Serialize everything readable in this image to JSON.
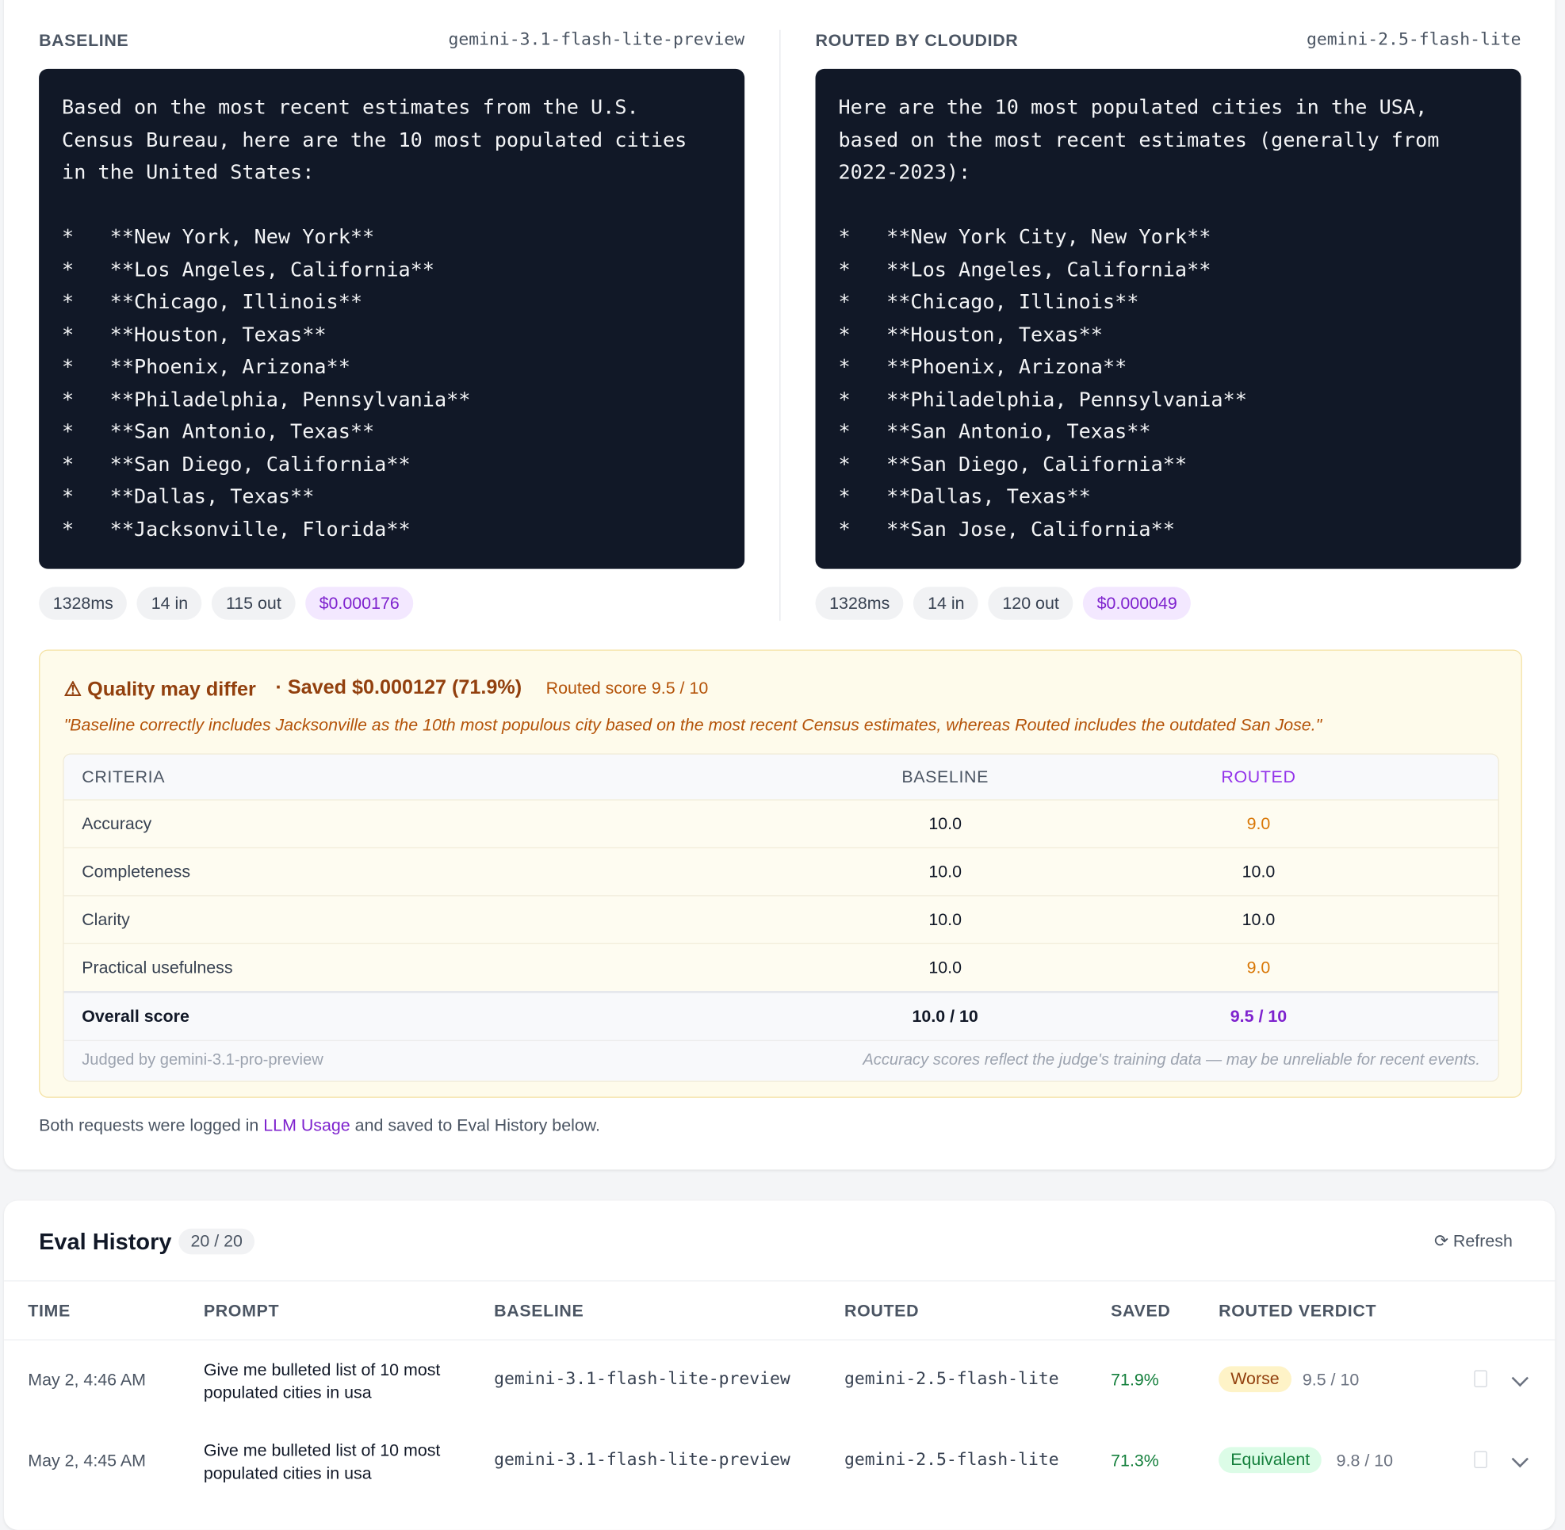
{
  "comparison": {
    "baseline": {
      "label": "BASELINE",
      "model": "gemini-3.1-flash-lite-preview",
      "intro": "Based on the most recent estimates from the U.S. Census Bureau, here are the 10 most populated cities in the United States:",
      "items": [
        "*   **New York, New York**",
        "*   **Los Angeles, California**",
        "*   **Chicago, Illinois**",
        "*   **Houston, Texas**",
        "*   **Phoenix, Arizona**",
        "*   **Philadelphia, Pennsylvania**",
        "*   **San Antonio, Texas**",
        "*   **San Diego, California**",
        "*   **Dallas, Texas**",
        "*   **Jacksonville, Florida**"
      ],
      "stats": [
        "1328ms",
        "14 in",
        "115 out"
      ],
      "cost": "$0.000176"
    },
    "routed": {
      "label": "ROUTED BY CLOUDIDR",
      "model": "gemini-2.5-flash-lite",
      "intro": "Here are the 10 most populated cities in the USA, based on the most recent estimates (generally from 2022-2023):",
      "items": [
        "*   **New York City, New York**",
        "*   **Los Angeles, California**",
        "*   **Chicago, Illinois**",
        "*   **Houston, Texas**",
        "*   **Phoenix, Arizona**",
        "*   **Philadelphia, Pennsylvania**",
        "*   **San Antonio, Texas**",
        "*   **San Diego, California**",
        "*   **Dallas, Texas**",
        "*   **San Jose, California**"
      ],
      "stats": [
        "1328ms",
        "14 in",
        "120 out"
      ],
      "cost": "$0.000049"
    }
  },
  "quality": {
    "title": "Quality may differ",
    "saved": "· Saved $0.000127 (71.9%)",
    "score": "Routed score 9.5 / 10",
    "reason": "\"Baseline correctly includes Jacksonville as the 10th most populous city based on the most recent Census estimates, whereas Routed includes the outdated San Jose.\"",
    "table": {
      "headers": [
        "CRITERIA",
        "BASELINE",
        "ROUTED"
      ],
      "rows": [
        [
          "Accuracy",
          "10.0",
          "9.0"
        ],
        [
          "Completeness",
          "10.0",
          "10.0"
        ],
        [
          "Clarity",
          "10.0",
          "10.0"
        ],
        [
          "Practical usefulness",
          "10.0",
          "9.0"
        ]
      ],
      "overall": [
        "Overall score",
        "10.0 / 10",
        "9.5 / 10"
      ],
      "judge": "Judged by gemini-3.1-pro-preview",
      "note": "Accuracy scores reflect the judge's training data — may be unreliable for recent events."
    }
  },
  "footer": {
    "before": "Both requests were logged in",
    "link": "LLM Usage",
    "after": "and saved to Eval History below."
  },
  "history": {
    "title": "Eval History",
    "count": "20 / 20",
    "refresh": "Refresh",
    "headers": [
      "TIME",
      "PROMPT",
      "BASELINE",
      "ROUTED",
      "SAVED",
      "ROUTED VERDICT"
    ],
    "rows": [
      {
        "time": "May 2, 4:46 AM",
        "prompt": "Give me bulleted list of 10 most populated cities in usa",
        "baseline": "gemini-3.1-flash-lite-preview",
        "routed": "gemini-2.5-flash-lite",
        "saved": "71.9%",
        "verdict": "Worse",
        "score": "9.5 / 10"
      },
      {
        "time": "May 2, 4:45 AM",
        "prompt": "Give me bulleted list of 10 most populated cities in usa",
        "baseline": "gemini-3.1-flash-lite-preview",
        "routed": "gemini-2.5-flash-lite",
        "saved": "71.3%",
        "verdict": "Equivalent",
        "score": "9.8 / 10"
      }
    ]
  }
}
